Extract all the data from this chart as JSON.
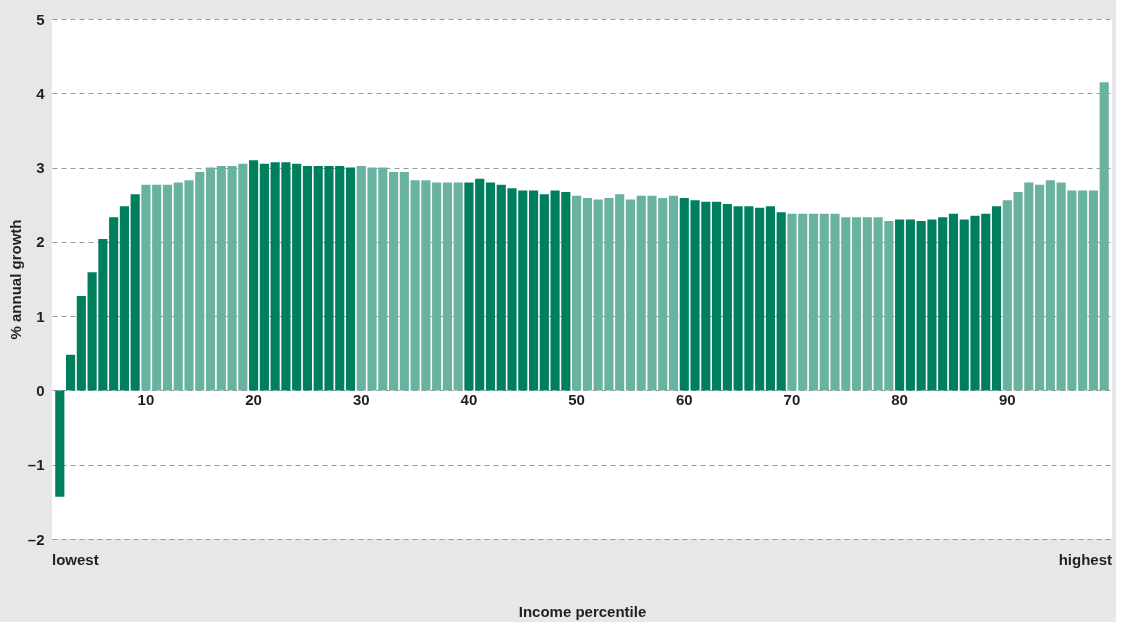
{
  "chart_data": {
    "type": "bar",
    "xlabel": "Income percentile",
    "ylabel": "% annual growth",
    "categories": [
      null,
      null,
      null,
      null,
      null,
      null,
      null,
      null,
      "10",
      null,
      null,
      null,
      null,
      null,
      null,
      null,
      null,
      null,
      "20",
      null,
      null,
      null,
      null,
      null,
      null,
      null,
      null,
      null,
      "30",
      null,
      null,
      null,
      null,
      null,
      null,
      null,
      null,
      null,
      "40",
      null,
      null,
      null,
      null,
      null,
      null,
      null,
      null,
      null,
      "50",
      null,
      null,
      null,
      null,
      null,
      null,
      null,
      null,
      null,
      "60",
      null,
      null,
      null,
      null,
      null,
      null,
      null,
      null,
      null,
      "70",
      null,
      null,
      null,
      null,
      null,
      null,
      null,
      null,
      null,
      "80",
      null,
      null,
      null,
      null,
      null,
      null,
      null,
      null,
      null,
      "90",
      null,
      null,
      null,
      null,
      null,
      null,
      null,
      null,
      null
    ],
    "values": [
      -1.43,
      0.48,
      1.27,
      1.59,
      2.04,
      2.33,
      2.48,
      2.64,
      2.77,
      2.77,
      2.77,
      2.8,
      2.83,
      2.94,
      3.0,
      3.02,
      3.02,
      3.05,
      3.1,
      3.05,
      3.07,
      3.07,
      3.05,
      3.02,
      3.02,
      3.02,
      3.02,
      3.0,
      3.02,
      3.0,
      3.0,
      2.94,
      2.94,
      2.83,
      2.83,
      2.8,
      2.8,
      2.8,
      2.8,
      2.85,
      2.8,
      2.77,
      2.72,
      2.69,
      2.69,
      2.64,
      2.69,
      2.67,
      2.62,
      2.59,
      2.57,
      2.59,
      2.64,
      2.57,
      2.62,
      2.62,
      2.59,
      2.62,
      2.59,
      2.56,
      2.54,
      2.54,
      2.51,
      2.48,
      2.48,
      2.46,
      2.48,
      2.4,
      2.38,
      2.38,
      2.38,
      2.38,
      2.38,
      2.33,
      2.33,
      2.33,
      2.33,
      2.28,
      2.3,
      2.3,
      2.28,
      2.3,
      2.33,
      2.38,
      2.3,
      2.35,
      2.38,
      2.48,
      2.56,
      2.67,
      2.8,
      2.77,
      2.83,
      2.8,
      2.69,
      2.69,
      2.69,
      4.15
    ],
    "colors": [
      "#007f5f",
      "#007f5f",
      "#007f5f",
      "#007f5f",
      "#007f5f",
      "#007f5f",
      "#007f5f",
      "#007f5f",
      "#6ab2a0",
      "#6ab2a0",
      "#6ab2a0",
      "#6ab2a0",
      "#6ab2a0",
      "#6ab2a0",
      "#6ab2a0",
      "#6ab2a0",
      "#6ab2a0",
      "#6ab2a0",
      "#007f5f",
      "#007f5f",
      "#007f5f",
      "#007f5f",
      "#007f5f",
      "#007f5f",
      "#007f5f",
      "#007f5f",
      "#007f5f",
      "#007f5f",
      "#6ab2a0",
      "#6ab2a0",
      "#6ab2a0",
      "#6ab2a0",
      "#6ab2a0",
      "#6ab2a0",
      "#6ab2a0",
      "#6ab2a0",
      "#6ab2a0",
      "#6ab2a0",
      "#007f5f",
      "#007f5f",
      "#007f5f",
      "#007f5f",
      "#007f5f",
      "#007f5f",
      "#007f5f",
      "#007f5f",
      "#007f5f",
      "#007f5f",
      "#6ab2a0",
      "#6ab2a0",
      "#6ab2a0",
      "#6ab2a0",
      "#6ab2a0",
      "#6ab2a0",
      "#6ab2a0",
      "#6ab2a0",
      "#6ab2a0",
      "#6ab2a0",
      "#007f5f",
      "#007f5f",
      "#007f5f",
      "#007f5f",
      "#007f5f",
      "#007f5f",
      "#007f5f",
      "#007f5f",
      "#007f5f",
      "#007f5f",
      "#6ab2a0",
      "#6ab2a0",
      "#6ab2a0",
      "#6ab2a0",
      "#6ab2a0",
      "#6ab2a0",
      "#6ab2a0",
      "#6ab2a0",
      "#6ab2a0",
      "#6ab2a0",
      "#007f5f",
      "#007f5f",
      "#007f5f",
      "#007f5f",
      "#007f5f",
      "#007f5f",
      "#007f5f",
      "#007f5f",
      "#007f5f",
      "#007f5f",
      "#6ab2a0",
      "#6ab2a0",
      "#6ab2a0",
      "#6ab2a0",
      "#6ab2a0",
      "#6ab2a0",
      "#6ab2a0",
      "#6ab2a0",
      "#6ab2a0",
      "#6ab2a0"
    ],
    "ylim": [
      -2,
      5
    ],
    "yticks": [
      {
        "value": -2,
        "label": "–2"
      },
      {
        "value": -1,
        "label": "–1"
      },
      0,
      1,
      2,
      3,
      4,
      5
    ],
    "grid": "y",
    "annotations": [
      "lowest",
      "highest"
    ]
  }
}
